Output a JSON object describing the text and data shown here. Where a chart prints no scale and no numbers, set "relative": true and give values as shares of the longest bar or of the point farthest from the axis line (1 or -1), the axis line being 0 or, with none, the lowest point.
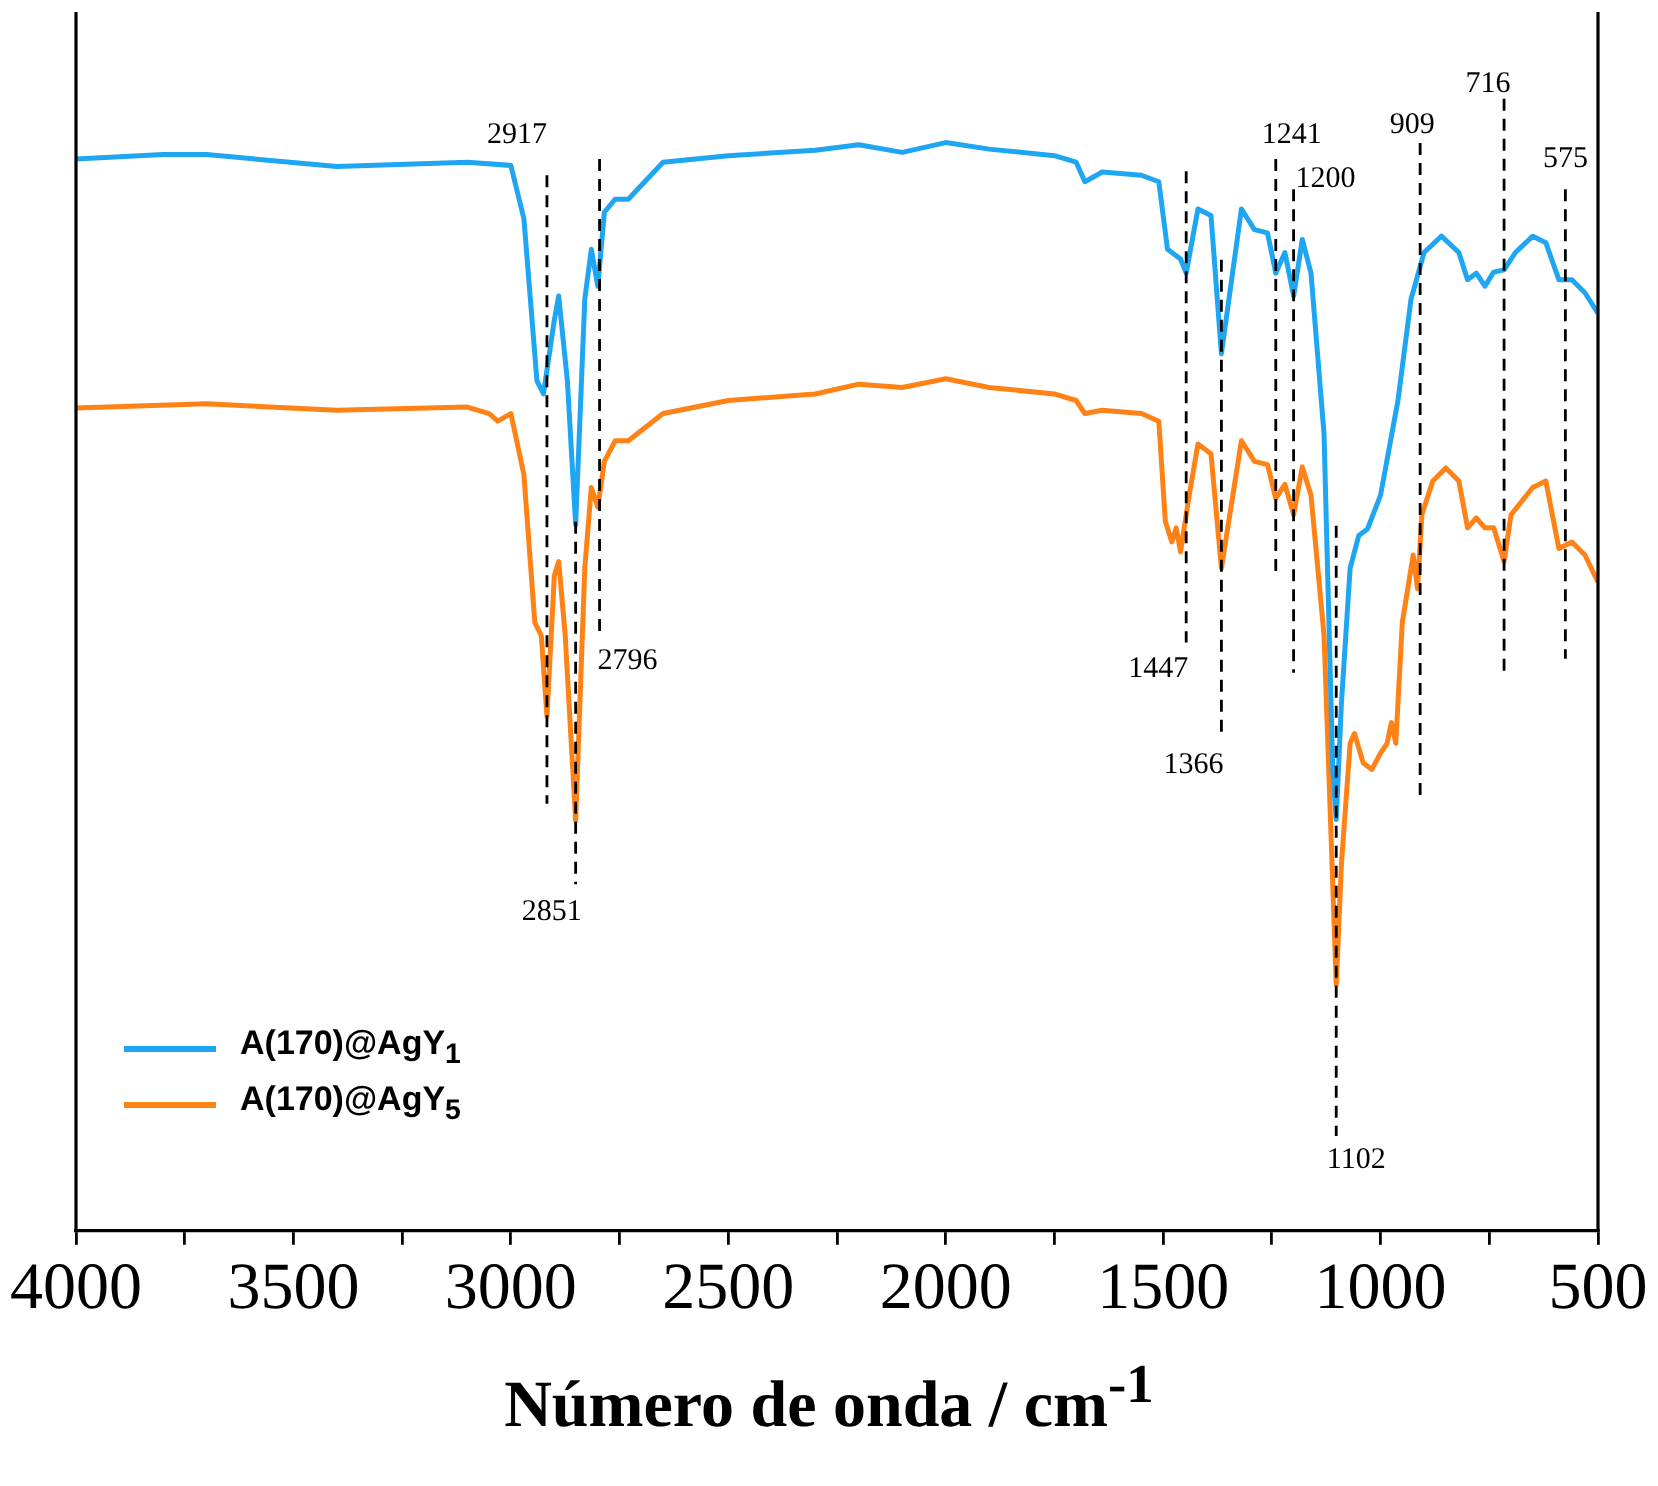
{
  "chart_data": {
    "type": "line",
    "xlabel": "Número de onda / cm$^{-1}$",
    "relative": true,
    "marker": "none",
    "legend": "bottom left",
    "xlim": [
      4000,
      500
    ],
    "xticks": [
      4000,
      {
        "value": 3750,
        "label": null
      },
      3500,
      {
        "value": 3250,
        "label": null
      },
      3000,
      {
        "value": 2750,
        "label": null
      },
      2500,
      {
        "value": 2250,
        "label": null
      },
      2000,
      {
        "value": 1750,
        "label": null
      },
      1500,
      {
        "value": 1250,
        "label": null
      },
      1000,
      {
        "value": 750,
        "label": null
      },
      500
    ],
    "series": [
      {
        "name": "A(170)@AgY$_{1}$",
        "color": "#1fa6f2",
        "x": [
          4000,
          3800,
          3700,
          3400,
          3100,
          3000,
          2970,
          2940,
          2925,
          2900,
          2890,
          2870,
          2851,
          2830,
          2815,
          2800,
          2785,
          2760,
          2730,
          2650,
          2500,
          2300,
          2200,
          2100,
          2000,
          1900,
          1750,
          1700,
          1680,
          1640,
          1550,
          1510,
          1490,
          1460,
          1447,
          1420,
          1390,
          1366,
          1320,
          1290,
          1260,
          1241,
          1220,
          1200,
          1180,
          1160,
          1130,
          1110,
          1102,
          1090,
          1070,
          1050,
          1030,
          1000,
          960,
          930,
          900,
          860,
          820,
          800,
          780,
          760,
          740,
          716,
          690,
          650,
          620,
          590,
          560,
          530,
          500
        ],
        "values": [
          0.985,
          0.989,
          0.989,
          0.978,
          0.982,
          0.979,
          0.93,
          0.781,
          0.769,
          0.837,
          0.859,
          0.781,
          0.649,
          0.856,
          0.902,
          0.868,
          0.936,
          0.948,
          0.948,
          0.982,
          0.988,
          0.993,
          0.998,
          0.991,
          1.0,
          0.994,
          0.988,
          0.982,
          0.964,
          0.973,
          0.97,
          0.964,
          0.902,
          0.893,
          0.88,
          0.939,
          0.933,
          0.806,
          0.939,
          0.92,
          0.917,
          0.88,
          0.899,
          0.859,
          0.911,
          0.88,
          0.732,
          0.424,
          0.378,
          0.485,
          0.609,
          0.639,
          0.645,
          0.676,
          0.763,
          0.856,
          0.899,
          0.914,
          0.899,
          0.874,
          0.88,
          0.868,
          0.881,
          0.883,
          0.899,
          0.914,
          0.908,
          0.874,
          0.874,
          0.862,
          0.843
        ]
      },
      {
        "name": "A(170)@AgY$_{5}$",
        "color": "#ff8216",
        "x": [
          4000,
          3700,
          3400,
          3100,
          3050,
          3030,
          3000,
          2970,
          2945,
          2930,
          2917,
          2900,
          2890,
          2875,
          2851,
          2830,
          2815,
          2800,
          2785,
          2760,
          2730,
          2650,
          2500,
          2300,
          2200,
          2100,
          2000,
          1900,
          1750,
          1700,
          1680,
          1640,
          1550,
          1510,
          1495,
          1480,
          1470,
          1460,
          1440,
          1420,
          1390,
          1366,
          1320,
          1290,
          1260,
          1241,
          1220,
          1200,
          1180,
          1160,
          1130,
          1110,
          1102,
          1090,
          1070,
          1060,
          1040,
          1020,
          1000,
          985,
          975,
          965,
          950,
          925,
          915,
          905,
          880,
          850,
          820,
          800,
          780,
          760,
          740,
          716,
          700,
          650,
          620,
          590,
          560,
          530,
          500
        ],
        "values": [
          0.756,
          0.76,
          0.754,
          0.757,
          0.751,
          0.744,
          0.751,
          0.695,
          0.559,
          0.547,
          0.473,
          0.602,
          0.615,
          0.547,
          0.377,
          0.609,
          0.683,
          0.665,
          0.707,
          0.726,
          0.726,
          0.751,
          0.763,
          0.769,
          0.778,
          0.775,
          0.783,
          0.775,
          0.769,
          0.763,
          0.751,
          0.754,
          0.751,
          0.744,
          0.652,
          0.633,
          0.646,
          0.624,
          0.676,
          0.723,
          0.714,
          0.609,
          0.726,
          0.707,
          0.704,
          0.673,
          0.686,
          0.658,
          0.702,
          0.676,
          0.547,
          0.319,
          0.226,
          0.337,
          0.448,
          0.457,
          0.43,
          0.424,
          0.439,
          0.448,
          0.467,
          0.448,
          0.559,
          0.621,
          0.59,
          0.658,
          0.689,
          0.701,
          0.689,
          0.646,
          0.655,
          0.646,
          0.646,
          0.615,
          0.658,
          0.683,
          0.689,
          0.627,
          0.633,
          0.621,
          0.596
        ]
      }
    ],
    "ref_lines": [
      {
        "axis": "x",
        "value": 2917,
        "label": "2917",
        "line_style": "dashed"
      },
      {
        "axis": "x",
        "value": 2851,
        "label": "2851",
        "line_style": "dashed"
      },
      {
        "axis": "x",
        "value": 2796,
        "label": "2796",
        "line_style": "dashed"
      },
      {
        "axis": "x",
        "value": 1447,
        "label": "1447",
        "line_style": "dashed"
      },
      {
        "axis": "x",
        "value": 1366,
        "label": "1366",
        "line_style": "dashed"
      },
      {
        "axis": "x",
        "value": 1241,
        "label": "1241",
        "line_style": "dashed"
      },
      {
        "axis": "x",
        "value": 1200,
        "label": "1200",
        "line_style": "dashed"
      },
      {
        "axis": "x",
        "value": 909,
        "label": "909",
        "line_style": "dashed"
      },
      {
        "axis": "x",
        "value": 716,
        "label": "716",
        "line_style": "dashed"
      },
      {
        "axis": "x",
        "value": 575,
        "label": "575",
        "line_style": "dashed"
      },
      {
        "axis": "x",
        "value": 1102,
        "label": "1102",
        "line_style": "dashed"
      }
    ]
  }
}
